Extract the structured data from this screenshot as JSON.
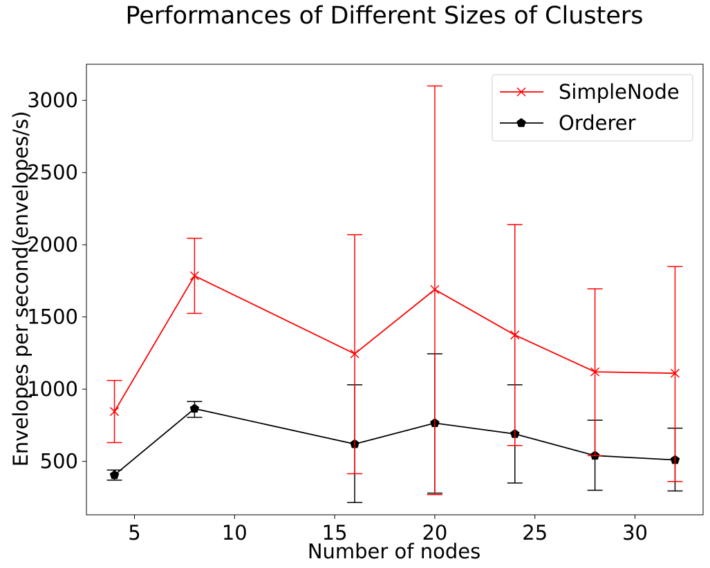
{
  "chart_data": {
    "type": "line",
    "title": "Performances of Different Sizes of Clusters",
    "xlabel": "Number of nodes",
    "ylabel": "Envelopes per second(envelopes/s)",
    "xlim": [
      2.6,
      33.4
    ],
    "ylim": [
      130,
      3250
    ],
    "xticks": [
      5,
      10,
      15,
      20,
      25,
      30
    ],
    "yticks": [
      500,
      1000,
      1500,
      2000,
      2500,
      3000
    ],
    "grid": false,
    "legend_position": "top-right",
    "x": [
      4,
      8,
      16,
      20,
      24,
      28,
      32
    ],
    "series": [
      {
        "name": "SimpleNode",
        "color": "#ff0000",
        "marker": "x",
        "values": [
          845,
          1785,
          1245,
          1690,
          1375,
          1120,
          1110
        ],
        "err_low": [
          630,
          1525,
          415,
          270,
          610,
          540,
          360
        ],
        "err_high": [
          1060,
          2045,
          2070,
          3100,
          2140,
          1695,
          1850
        ]
      },
      {
        "name": "Orderer",
        "color": "#000000",
        "marker": "pentagon",
        "values": [
          405,
          865,
          620,
          765,
          690,
          540,
          510
        ],
        "err_low": [
          370,
          805,
          215,
          280,
          350,
          300,
          295
        ],
        "err_high": [
          440,
          915,
          1030,
          1245,
          1030,
          785,
          730
        ]
      }
    ]
  }
}
